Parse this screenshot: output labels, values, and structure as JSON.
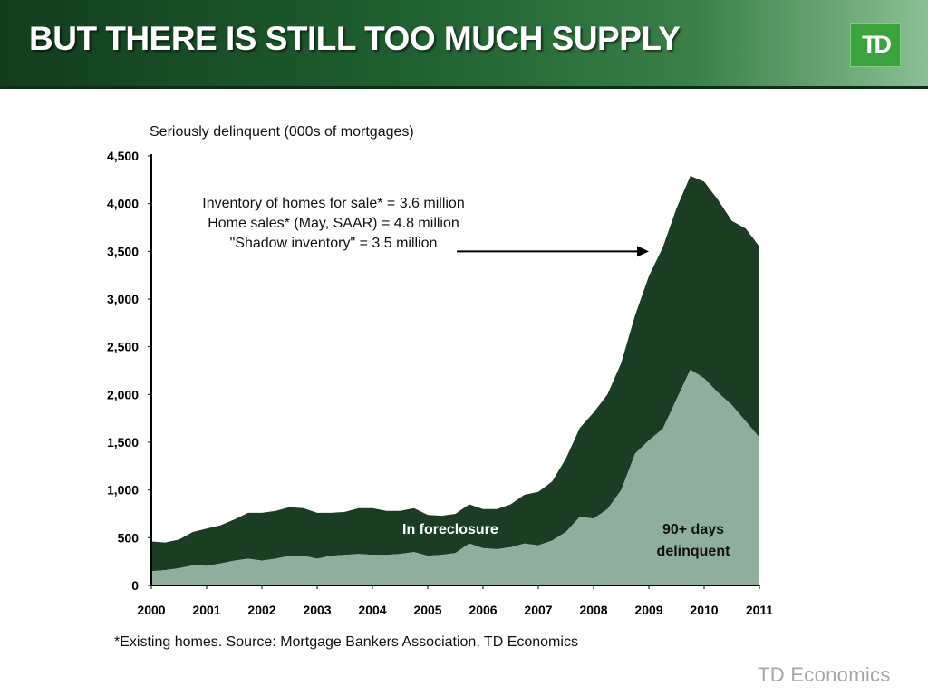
{
  "slide": {
    "title": "BUT THERE IS STILL TOO MUCH SUPPLY",
    "logo_text": "TD",
    "footer_brand": "TD Economics",
    "source_note": "*Existing homes. Source: Mortgage Bankers Association, TD Economics"
  },
  "colors": {
    "header_dark": "#123d1d",
    "header_light": "#8cbf95",
    "delinquent_area": "#1a3d24",
    "foreclosure_area": "#8fae9c",
    "logo_green": "#3aa33d"
  },
  "chart_data": {
    "type": "area",
    "stacked": true,
    "title": "",
    "ylabel": "Seriously delinquent (000s of mortgages)",
    "xlabel": "",
    "ylim": [
      0,
      4500
    ],
    "yticks": [
      0,
      500,
      1000,
      1500,
      2000,
      2500,
      3000,
      3500,
      4000,
      4500
    ],
    "ytick_labels": [
      "0",
      "500",
      "1,000",
      "1,500",
      "2,000",
      "2,500",
      "3,000",
      "3,500",
      "4,000",
      "4,500"
    ],
    "xlim": [
      2000.0,
      2011.0
    ],
    "xtick_labels": [
      "2000",
      "2001",
      "2002",
      "2003",
      "2004",
      "2005",
      "2006",
      "2007",
      "2008",
      "2009",
      "2010",
      "2011"
    ],
    "grid": false,
    "x": [
      2000.0,
      2000.25,
      2000.5,
      2000.75,
      2001.0,
      2001.25,
      2001.5,
      2001.75,
      2002.0,
      2002.25,
      2002.5,
      2002.75,
      2003.0,
      2003.25,
      2003.5,
      2003.75,
      2004.0,
      2004.25,
      2004.5,
      2004.75,
      2005.0,
      2005.25,
      2005.5,
      2005.75,
      2006.0,
      2006.25,
      2006.5,
      2006.75,
      2007.0,
      2007.25,
      2007.5,
      2007.75,
      2008.0,
      2008.25,
      2008.5,
      2008.75,
      2009.0,
      2009.25,
      2009.5,
      2009.75,
      2010.0,
      2010.25,
      2010.5,
      2010.75,
      2011.0
    ],
    "series": [
      {
        "name": "In foreclosure",
        "values": [
          150,
          160,
          180,
          210,
          205,
          230,
          260,
          280,
          260,
          280,
          310,
          310,
          280,
          310,
          320,
          330,
          320,
          320,
          330,
          350,
          310,
          320,
          340,
          440,
          390,
          380,
          400,
          440,
          420,
          470,
          560,
          720,
          700,
          800,
          1000,
          1380,
          1520,
          1640,
          1950,
          2260,
          2170,
          2020,
          1890,
          1720,
          1550
        ]
      },
      {
        "name": "90+ days delinquent",
        "values": [
          310,
          290,
          300,
          350,
          390,
          400,
          430,
          480,
          500,
          500,
          510,
          500,
          480,
          450,
          450,
          480,
          490,
          460,
          450,
          460,
          430,
          410,
          410,
          410,
          410,
          420,
          450,
          510,
          560,
          620,
          770,
          930,
          1110,
          1200,
          1330,
          1450,
          1720,
          1900,
          2000,
          2030,
          2060,
          2020,
          1930,
          2020,
          2000
        ]
      }
    ],
    "annotations": {
      "text_lines": [
        "Inventory of homes for sale* = 3.6 million",
        "Home sales* (May, SAAR) = 4.8 million",
        "\"Shadow inventory\" = 3.5 million"
      ],
      "arrow_points_to": 3500,
      "area_labels": {
        "foreclosure": "In foreclosure",
        "delinquent_line1": "90+ days",
        "delinquent_line2": "delinquent"
      }
    }
  }
}
